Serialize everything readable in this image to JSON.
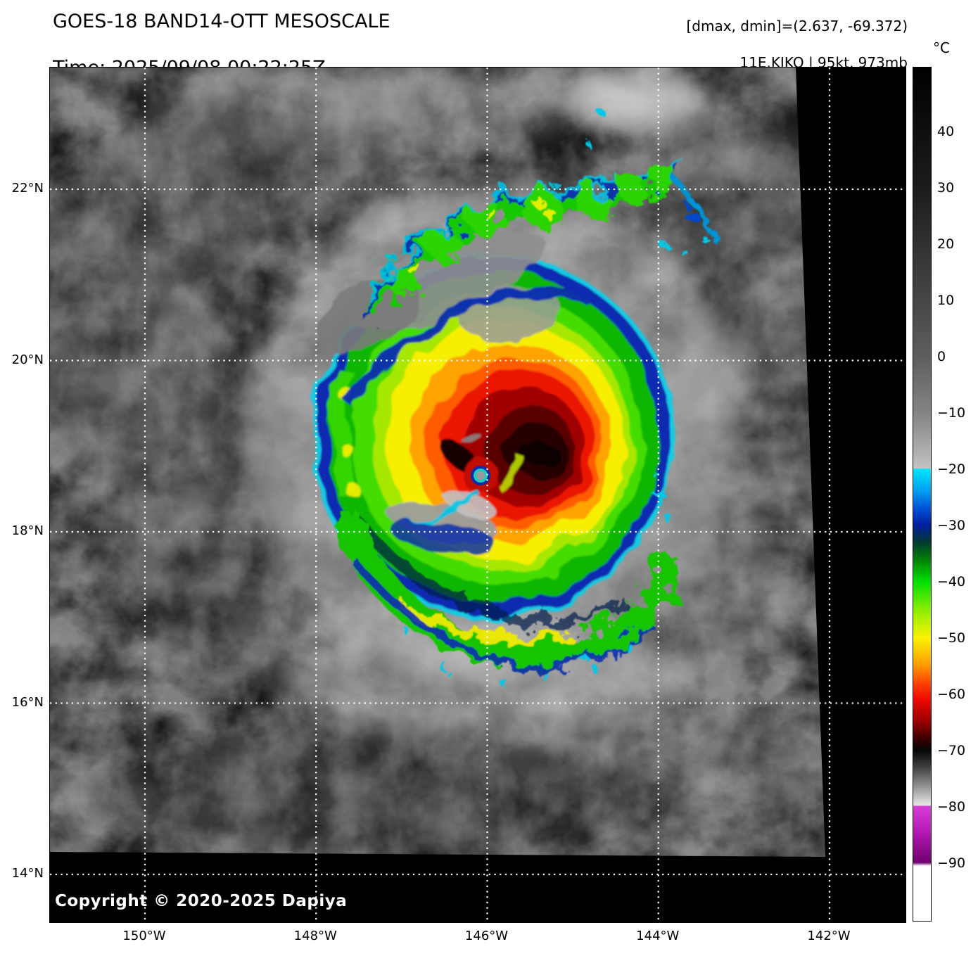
{
  "header": {
    "title_line1": "GOES-18 BAND14-OTT MESOSCALE",
    "title_line2": "Time: 2025/09/08 00:22:25Z",
    "annotation_line1": "[dmax, dmin]=(2.637, -69.372)",
    "annotation_line2": "11E.KIKO | 95kt, 973mb"
  },
  "map": {
    "copyright": "Copyright © 2020-2025 Dapiya",
    "gridline_color": "#ffffff",
    "lat_ticks": [
      {
        "value": 22,
        "label": "22°N"
      },
      {
        "value": 20,
        "label": "20°N"
      },
      {
        "value": 18,
        "label": "18°N"
      },
      {
        "value": 16,
        "label": "16°N"
      },
      {
        "value": 14,
        "label": "14°N"
      }
    ],
    "lon_ticks": [
      {
        "value": 150,
        "label": "150°W"
      },
      {
        "value": 148,
        "label": "148°W"
      },
      {
        "value": 146,
        "label": "146°W"
      },
      {
        "value": 144,
        "label": "144°W"
      },
      {
        "value": 142,
        "label": "142°W"
      }
    ]
  },
  "colorbar": {
    "unit": "°C",
    "ticks": [
      {
        "value": 40,
        "label": "40"
      },
      {
        "value": 30,
        "label": "30"
      },
      {
        "value": 20,
        "label": "20"
      },
      {
        "value": 10,
        "label": "10"
      },
      {
        "value": 0,
        "label": "0"
      },
      {
        "value": -10,
        "label": "−10"
      },
      {
        "value": -20,
        "label": "−20"
      },
      {
        "value": -30,
        "label": "−30"
      },
      {
        "value": -40,
        "label": "−40"
      },
      {
        "value": -50,
        "label": "−50"
      },
      {
        "value": -60,
        "label": "−60"
      },
      {
        "value": -70,
        "label": "−70"
      },
      {
        "value": -80,
        "label": "−80"
      },
      {
        "value": -90,
        "label": "−90"
      }
    ],
    "colormap_stops": [
      {
        "value": 51.5,
        "color": "#000000"
      },
      {
        "value": 30,
        "color": "#1c1c1c"
      },
      {
        "value": 10,
        "color": "#464646"
      },
      {
        "value": 0,
        "color": "#5e5e5e"
      },
      {
        "value": -10,
        "color": "#848484"
      },
      {
        "value": -19.8,
        "color": "#c2c2c2"
      },
      {
        "value": -20,
        "color": "#00e6ff"
      },
      {
        "value": -24,
        "color": "#009cf0"
      },
      {
        "value": -27,
        "color": "#0050d8"
      },
      {
        "value": -30,
        "color": "#001e9a"
      },
      {
        "value": -33,
        "color": "#003a30"
      },
      {
        "value": -36,
        "color": "#007e08"
      },
      {
        "value": -40,
        "color": "#00e000"
      },
      {
        "value": -45,
        "color": "#8aee00"
      },
      {
        "value": -50,
        "color": "#fbf300"
      },
      {
        "value": -55,
        "color": "#ff9800"
      },
      {
        "value": -58,
        "color": "#ff4400"
      },
      {
        "value": -61,
        "color": "#ee0800"
      },
      {
        "value": -65,
        "color": "#960000"
      },
      {
        "value": -68,
        "color": "#3a0000"
      },
      {
        "value": -70,
        "color": "#060606"
      },
      {
        "value": -73,
        "color": "#404040"
      },
      {
        "value": -77,
        "color": "#a0a0a0"
      },
      {
        "value": -79.8,
        "color": "#e8e8e8"
      },
      {
        "value": -80,
        "color": "#d63cd6"
      },
      {
        "value": -85,
        "color": "#b016b0"
      },
      {
        "value": -90,
        "color": "#700070"
      },
      {
        "value": -90.6,
        "color": "#ffffff"
      },
      {
        "value": -100.4,
        "color": "#ffffff"
      }
    ]
  }
}
